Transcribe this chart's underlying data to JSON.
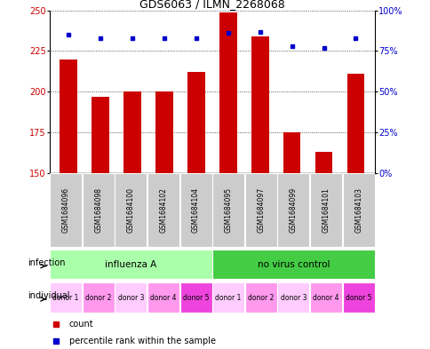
{
  "title": "GDS6063 / ILMN_2268068",
  "samples": [
    "GSM1684096",
    "GSM1684098",
    "GSM1684100",
    "GSM1684102",
    "GSM1684104",
    "GSM1684095",
    "GSM1684097",
    "GSM1684099",
    "GSM1684101",
    "GSM1684103"
  ],
  "counts": [
    220,
    197,
    200,
    200,
    212,
    249,
    234,
    175,
    163,
    211
  ],
  "percentile_ranks": [
    85,
    83,
    83,
    83,
    83,
    86,
    87,
    78,
    77,
    83
  ],
  "ylim_left": [
    150,
    250
  ],
  "ylim_right": [
    0,
    100
  ],
  "yticks_left": [
    150,
    175,
    200,
    225,
    250
  ],
  "yticks_right": [
    0,
    25,
    50,
    75,
    100
  ],
  "right_tick_labels": [
    "0%",
    "25%",
    "50%",
    "75%",
    "100%"
  ],
  "bar_color": "#cc0000",
  "dot_color": "#0000cc",
  "infection_groups": [
    {
      "label": "influenza A",
      "start": 0,
      "end": 5,
      "color": "#aaffaa"
    },
    {
      "label": "no virus control",
      "start": 5,
      "end": 10,
      "color": "#44cc44"
    }
  ],
  "individual_labels": [
    "donor 1",
    "donor 2",
    "donor 3",
    "donor 4",
    "donor 5",
    "donor 1",
    "donor 2",
    "donor 3",
    "donor 4",
    "donor 5"
  ],
  "individual_colors": [
    "#ffccff",
    "#ff99ee",
    "#ffccff",
    "#ff99ee",
    "#ee44dd",
    "#ffccff",
    "#ff99ee",
    "#ffccff",
    "#ff99ee",
    "#ee44dd"
  ],
  "sample_bg_color": "#cccccc",
  "legend_count_color": "#cc0000",
  "legend_pct_color": "#0000cc"
}
